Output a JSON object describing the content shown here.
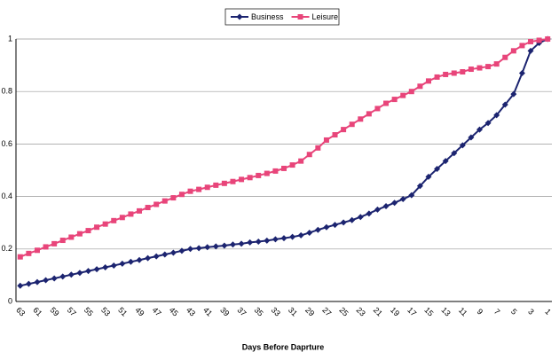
{
  "chart_data": {
    "type": "line",
    "x_label": "Days Before Daprture",
    "categories": [
      "63",
      null,
      "61",
      null,
      "59",
      null,
      "57",
      null,
      "55",
      null,
      "53",
      null,
      "51",
      null,
      "49",
      null,
      "47",
      null,
      "45",
      null,
      "43",
      null,
      "41",
      null,
      "39",
      null,
      "37",
      null,
      "35",
      null,
      "33",
      null,
      "31",
      null,
      "29",
      null,
      "27",
      null,
      "25",
      null,
      "23",
      null,
      "21",
      null,
      "19",
      null,
      "17",
      null,
      "15",
      null,
      "13",
      null,
      "11",
      null,
      "9",
      null,
      "7",
      null,
      "5",
      null,
      "3",
      null,
      "1"
    ],
    "series": [
      {
        "name": "Business",
        "color": "#1c2470",
        "marker": "diamond",
        "values": [
          0.06,
          0.067,
          0.074,
          0.081,
          0.088,
          0.095,
          0.102,
          0.109,
          0.116,
          0.123,
          0.13,
          0.137,
          0.144,
          0.151,
          0.158,
          0.165,
          0.172,
          0.179,
          0.186,
          0.193,
          0.2,
          0.203,
          0.207,
          0.21,
          0.213,
          0.217,
          0.22,
          0.225,
          0.228,
          0.232,
          0.237,
          0.241,
          0.246,
          0.252,
          0.262,
          0.273,
          0.283,
          0.292,
          0.301,
          0.31,
          0.322,
          0.335,
          0.35,
          0.363,
          0.376,
          0.39,
          0.405,
          0.44,
          0.475,
          0.505,
          0.535,
          0.565,
          0.595,
          0.625,
          0.655,
          0.68,
          0.71,
          0.75,
          0.79,
          0.87,
          0.955,
          0.985,
          1.0
        ]
      },
      {
        "name": "Leisure",
        "color": "#e8457a",
        "marker": "square",
        "values": [
          0.17,
          0.183,
          0.195,
          0.208,
          0.22,
          0.233,
          0.245,
          0.258,
          0.27,
          0.283,
          0.295,
          0.308,
          0.32,
          0.333,
          0.345,
          0.358,
          0.37,
          0.383,
          0.395,
          0.408,
          0.42,
          0.427,
          0.435,
          0.443,
          0.45,
          0.457,
          0.465,
          0.472,
          0.48,
          0.488,
          0.497,
          0.507,
          0.52,
          0.535,
          0.56,
          0.585,
          0.615,
          0.635,
          0.655,
          0.675,
          0.695,
          0.715,
          0.735,
          0.755,
          0.77,
          0.785,
          0.8,
          0.82,
          0.84,
          0.855,
          0.865,
          0.87,
          0.875,
          0.885,
          0.89,
          0.895,
          0.905,
          0.93,
          0.955,
          0.975,
          0.99,
          0.995,
          1.0
        ]
      }
    ],
    "ylim": [
      0,
      1
    ],
    "yticks": [
      0,
      0.2,
      0.4,
      0.6,
      0.8,
      1
    ],
    "grid": true,
    "legend": "top"
  }
}
